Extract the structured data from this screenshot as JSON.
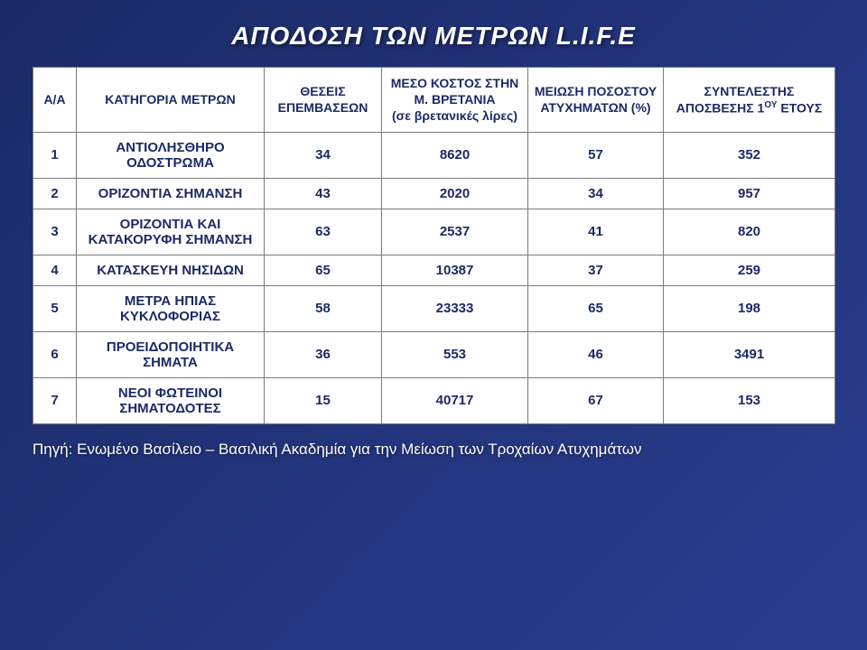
{
  "title": "ΑΠΟΔΟΣΗ ΤΩΝ ΜΕΤΡΩΝ L.I.F.E",
  "columns": {
    "aa": "Α/Α",
    "category": "ΚΑΤΗΓΟΡΙΑ ΜΕΤΡΩΝ",
    "positions": "ΘΕΣΕΙΣ ΕΠΕΜΒΑΣΕΩΝ",
    "cost_line1": "ΜΕΣΟ ΚΟΣΤΟΣ ΣΤΗΝ Μ. ΒΡΕΤΑΝΙΑ",
    "cost_line2": "(σε βρετανικές λίρες)",
    "reduction": "ΜΕΙΩΣΗ ΠΟΣΟΣΤΟΥ ΑΤΥΧΗΜΑΤΩΝ (%)",
    "factor_pre": "ΣΥΝΤΕΛΕΣΤΗΣ ΑΠΟΣΒΕΣΗΣ 1",
    "factor_sup": "ΟΥ",
    "factor_post": " ΕΤΟΥΣ"
  },
  "rows": [
    {
      "aa": "1",
      "category": "ΑΝΤΙΟΛΗΣΘΗΡΟ ΟΔΟΣΤΡΩΜΑ",
      "positions": "34",
      "cost": "8620",
      "reduction": "57",
      "factor": "352"
    },
    {
      "aa": "2",
      "category": "ΟΡΙΖΟΝΤΙΑ ΣΗΜΑΝΣΗ",
      "positions": "43",
      "cost": "2020",
      "reduction": "34",
      "factor": "957"
    },
    {
      "aa": "3",
      "category": "ΟΡΙΖΟΝΤΙΑ ΚΑΙ ΚΑΤΑΚΟΡΥΦΗ ΣΗΜΑΝΣΗ",
      "positions": "63",
      "cost": "2537",
      "reduction": "41",
      "factor": "820"
    },
    {
      "aa": "4",
      "category": "ΚΑΤΑΣΚΕΥΗ ΝΗΣΙΔΩΝ",
      "positions": "65",
      "cost": "10387",
      "reduction": "37",
      "factor": "259"
    },
    {
      "aa": "5",
      "category": "ΜΕΤΡΑ ΗΠΙΑΣ ΚΥΚΛΟΦΟΡΙΑΣ",
      "positions": "58",
      "cost": "23333",
      "reduction": "65",
      "factor": "198"
    },
    {
      "aa": "6",
      "category": "ΠΡΟΕΙΔΟΠΟΙΗΤΙΚΑ ΣΗΜΑΤΑ",
      "positions": "36",
      "cost": "553",
      "reduction": "46",
      "factor": "3491"
    },
    {
      "aa": "7",
      "category": "ΝΕΟΙ ΦΩΤΕΙΝΟΙ ΣΗΜΑΤΟΔΟΤΕΣ",
      "positions": "15",
      "cost": "40717",
      "reduction": "67",
      "factor": "153"
    }
  ],
  "source": "Πηγή: Ενωμένο Βασίλειο – Βασιλική Ακαδημία για την Μείωση των Τροχαίων Ατυχημάτων",
  "style": {
    "bg_gradient_from": "#1b2a66",
    "bg_gradient_to": "#2a3d8f",
    "table_bg": "#ffffff",
    "border_color": "#7a7a7a",
    "text_color": "#1b2a66",
    "title_color": "#ffffff",
    "title_fontsize": 28,
    "header_fontsize": 14,
    "cell_fontsize": 15,
    "source_fontsize": 17
  }
}
